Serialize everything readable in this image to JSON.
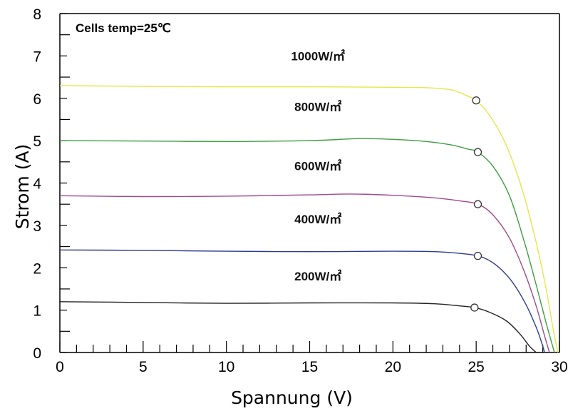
{
  "chart_data": {
    "type": "line",
    "annotation": "Cells temp=25℃",
    "xlabel": "Spannung (V)",
    "ylabel": "Strom (A)",
    "xlim": [
      0,
      30
    ],
    "ylim": [
      0,
      8
    ],
    "x_ticks": [
      "0",
      "5",
      "10",
      "15",
      "20",
      "25",
      "30"
    ],
    "y_ticks": [
      "0",
      "1",
      "2",
      "3",
      "4",
      "5",
      "6",
      "7",
      "8"
    ],
    "grid": false,
    "series": [
      {
        "name": "1000W/㎡",
        "color": "#e6e64a",
        "points": [
          [
            0,
            6.3
          ],
          [
            5,
            6.28
          ],
          [
            10,
            6.27
          ],
          [
            15,
            6.27
          ],
          [
            20,
            6.26
          ],
          [
            22,
            6.25
          ],
          [
            23.5,
            6.2
          ],
          [
            24.5,
            6.05
          ],
          [
            25,
            5.95
          ],
          [
            25.8,
            5.6
          ],
          [
            26.8,
            4.9
          ],
          [
            27.8,
            3.8
          ],
          [
            28.6,
            2.6
          ],
          [
            29.2,
            1.5
          ],
          [
            29.6,
            0.6
          ],
          [
            29.9,
            0
          ]
        ],
        "mpp": [
          25,
          5.95
        ]
      },
      {
        "name": "800W/㎡",
        "color": "#3f9e3f",
        "points": [
          [
            0,
            5.0
          ],
          [
            5,
            4.99
          ],
          [
            10,
            4.98
          ],
          [
            15,
            5.0
          ],
          [
            18,
            5.05
          ],
          [
            20,
            5.03
          ],
          [
            22,
            4.98
          ],
          [
            23.5,
            4.9
          ],
          [
            24.5,
            4.8
          ],
          [
            25.1,
            4.73
          ],
          [
            26,
            4.4
          ],
          [
            27,
            3.7
          ],
          [
            27.9,
            2.6
          ],
          [
            28.6,
            1.6
          ],
          [
            29.2,
            0.7
          ],
          [
            29.7,
            0
          ]
        ],
        "mpp": [
          25.1,
          4.73
        ]
      },
      {
        "name": "600W/㎡",
        "color": "#a04a8c",
        "points": [
          [
            0,
            3.7
          ],
          [
            5,
            3.68
          ],
          [
            10,
            3.69
          ],
          [
            15,
            3.72
          ],
          [
            17.5,
            3.74
          ],
          [
            20,
            3.71
          ],
          [
            22.5,
            3.65
          ],
          [
            24,
            3.58
          ],
          [
            25.1,
            3.5
          ],
          [
            26,
            3.25
          ],
          [
            27,
            2.7
          ],
          [
            27.9,
            1.9
          ],
          [
            28.6,
            1.1
          ],
          [
            29.1,
            0.4
          ],
          [
            29.4,
            0
          ]
        ],
        "mpp": [
          25.1,
          3.5
        ]
      },
      {
        "name": "400W/㎡",
        "color": "#2f3a8f",
        "points": [
          [
            0,
            2.42
          ],
          [
            5,
            2.41
          ],
          [
            10,
            2.39
          ],
          [
            15,
            2.38
          ],
          [
            20,
            2.39
          ],
          [
            22.5,
            2.38
          ],
          [
            24,
            2.34
          ],
          [
            25.1,
            2.28
          ],
          [
            26,
            2.12
          ],
          [
            27,
            1.75
          ],
          [
            27.9,
            1.2
          ],
          [
            28.6,
            0.6
          ],
          [
            29.0,
            0.15
          ],
          [
            29.1,
            0
          ]
        ],
        "mpp": [
          25.1,
          2.28
        ]
      },
      {
        "name": "200W/㎡",
        "color": "#222222",
        "points": [
          [
            0,
            1.2
          ],
          [
            5,
            1.18
          ],
          [
            10,
            1.16
          ],
          [
            15,
            1.17
          ],
          [
            20,
            1.17
          ],
          [
            22.5,
            1.15
          ],
          [
            24,
            1.1
          ],
          [
            24.9,
            1.06
          ],
          [
            25.8,
            0.95
          ],
          [
            26.8,
            0.75
          ],
          [
            27.6,
            0.45
          ],
          [
            28.2,
            0.15
          ],
          [
            28.6,
            0
          ]
        ],
        "mpp": [
          24.9,
          1.06
        ]
      }
    ]
  }
}
